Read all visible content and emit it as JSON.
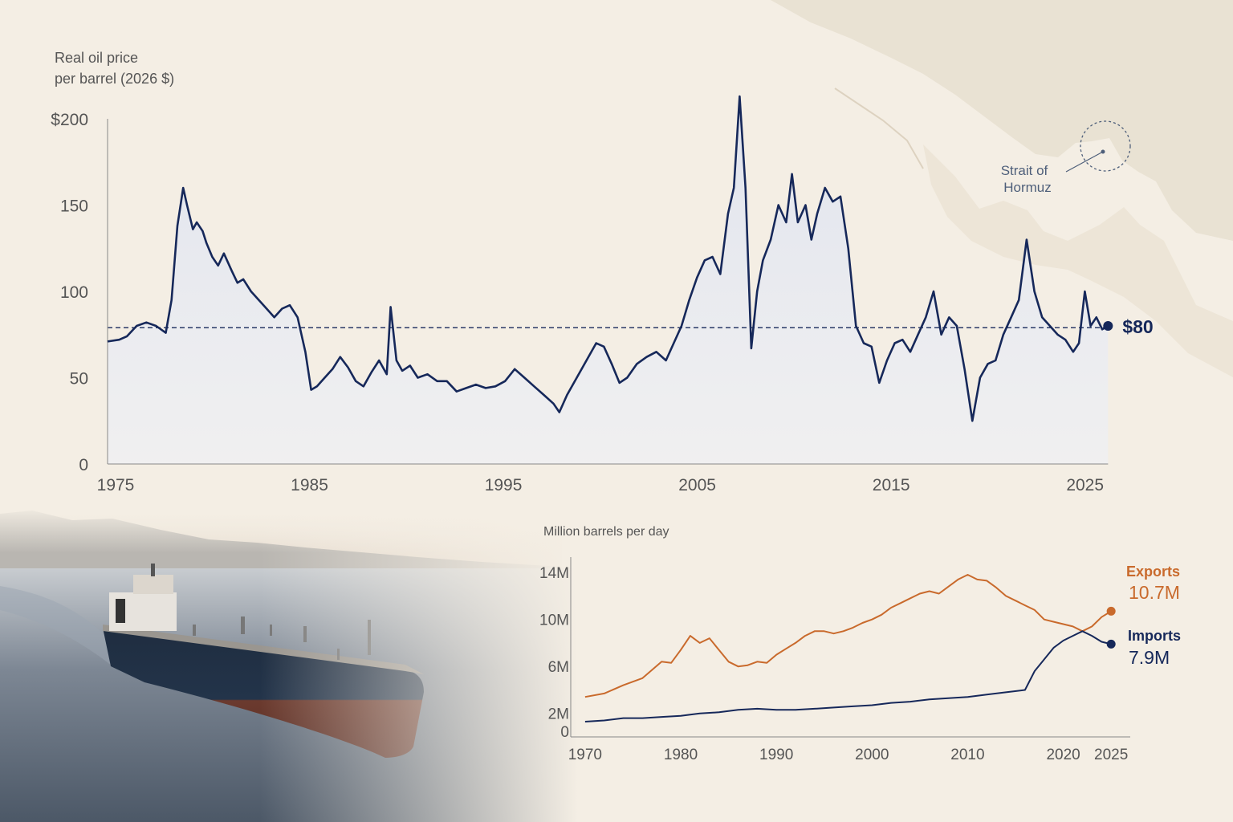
{
  "colors": {
    "background": "#f4eee4",
    "price_line": "#16285a",
    "price_fill": "#e3e6f0",
    "exports": "#c96a2c",
    "imports": "#16285a",
    "axis_text": "#555555",
    "map_land": "#e6ddcd"
  },
  "map": {
    "label_line1": "Strait of",
    "label_line2": "Hormuz"
  },
  "chart_data": [
    {
      "type": "area",
      "ylabel_line1": "Real oil price",
      "ylabel_line2": "per barrel (2026 $)",
      "x_ticks": [
        "1975",
        "1985",
        "1995",
        "2005",
        "2015",
        "2025"
      ],
      "x_tick_values": [
        1975,
        1985,
        1995,
        2005,
        2015,
        2025
      ],
      "y_ticks": [
        "$200",
        "150",
        "100",
        "50",
        "0"
      ],
      "y_tick_values": [
        200,
        150,
        100,
        50,
        0
      ],
      "xlim": [
        1975,
        2027
      ],
      "ylim": [
        0,
        200
      ],
      "reference_value": 79,
      "end_label": "$80",
      "grid": false,
      "x": [
        1975,
        1975.6,
        1976,
        1976.5,
        1977,
        1977.5,
        1978,
        1978.3,
        1978.6,
        1978.9,
        1979.1,
        1979.4,
        1979.6,
        1979.9,
        1980.1,
        1980.4,
        1980.7,
        1981,
        1981.4,
        1981.7,
        1982,
        1982.4,
        1982.8,
        1983.2,
        1983.6,
        1984,
        1984.4,
        1984.8,
        1985.2,
        1985.5,
        1985.8,
        1986.2,
        1986.6,
        1987,
        1987.4,
        1987.8,
        1988.2,
        1988.6,
        1989,
        1989.4,
        1989.6,
        1989.9,
        1990.2,
        1990.6,
        1991,
        1991.5,
        1992,
        1992.5,
        1993,
        1993.5,
        1994,
        1994.5,
        1995,
        1995.5,
        1996,
        1996.5,
        1997,
        1997.5,
        1998,
        1998.3,
        1998.7,
        1999.2,
        1999.7,
        2000.2,
        2000.6,
        2001,
        2001.4,
        2001.8,
        2002.3,
        2002.8,
        2003.3,
        2003.8,
        2004.2,
        2004.6,
        2005,
        2005.4,
        2005.8,
        2006.2,
        2006.6,
        2007,
        2007.3,
        2007.6,
        2007.9,
        2008.2,
        2008.5,
        2008.8,
        2009.2,
        2009.6,
        2010,
        2010.3,
        2010.6,
        2011,
        2011.3,
        2011.6,
        2012,
        2012.4,
        2012.8,
        2013.2,
        2013.6,
        2014,
        2014.4,
        2014.8,
        2015.2,
        2015.6,
        2016,
        2016.4,
        2016.8,
        2017.2,
        2017.6,
        2018,
        2018.4,
        2018.8,
        2019.2,
        2019.6,
        2020,
        2020.4,
        2020.8,
        2021.2,
        2021.6,
        2022,
        2022.4,
        2022.8,
        2023.2,
        2023.6,
        2024,
        2024.4,
        2024.8,
        2025.1,
        2025.4,
        2025.7,
        2026,
        2026.3,
        2026.6
      ],
      "values": [
        71,
        72,
        74,
        80,
        82,
        80,
        76,
        95,
        138,
        160,
        150,
        136,
        140,
        135,
        128,
        120,
        115,
        122,
        112,
        105,
        107,
        100,
        95,
        90,
        85,
        90,
        92,
        85,
        65,
        43,
        45,
        50,
        55,
        62,
        56,
        48,
        45,
        53,
        60,
        52,
        91,
        60,
        54,
        57,
        50,
        52,
        48,
        48,
        42,
        44,
        46,
        44,
        45,
        48,
        55,
        50,
        45,
        40,
        35,
        30,
        40,
        50,
        60,
        70,
        68,
        58,
        47,
        50,
        58,
        62,
        65,
        60,
        70,
        80,
        95,
        108,
        118,
        120,
        110,
        145,
        160,
        213,
        160,
        67,
        100,
        118,
        130,
        150,
        140,
        168,
        140,
        150,
        130,
        145,
        160,
        152,
        155,
        125,
        80,
        70,
        68,
        47,
        60,
        70,
        72,
        65,
        75,
        85,
        100,
        75,
        85,
        80,
        55,
        25,
        50,
        58,
        60,
        75,
        85,
        95,
        130,
        100,
        85,
        80,
        75,
        72,
        65,
        70,
        100,
        80,
        85,
        78,
        80
      ]
    },
    {
      "type": "line",
      "ylabel": "Million barrels per day",
      "x_ticks": [
        "1970",
        "1980",
        "1990",
        "2000",
        "2010",
        "2020",
        "2025"
      ],
      "x_tick_values": [
        1970,
        1980,
        1990,
        2000,
        2010,
        2020,
        2025
      ],
      "y_ticks": [
        "14M",
        "10M",
        "6M",
        "2M",
        "0"
      ],
      "y_tick_values": [
        14,
        10,
        6,
        2,
        0
      ],
      "xlim": [
        1968.5,
        2027
      ],
      "ylim": [
        0,
        15
      ],
      "grid": false,
      "series": [
        {
          "name": "Exports",
          "end_label": "10.7M",
          "x": [
            1970,
            1972,
            1974,
            1976,
            1978,
            1979,
            1980,
            1981,
            1982,
            1983,
            1984,
            1985,
            1986,
            1987,
            1988,
            1989,
            1990,
            1991,
            1992,
            1993,
            1994,
            1995,
            1996,
            1997,
            1998,
            1999,
            2000,
            2001,
            2002,
            2003,
            2004,
            2005,
            2006,
            2007,
            2008,
            2009,
            2010,
            2011,
            2012,
            2013,
            2014,
            2015,
            2016,
            2017,
            2018,
            2019,
            2020,
            2021,
            2022,
            2023,
            2024,
            2025
          ],
          "values": [
            3.4,
            3.7,
            4.4,
            5,
            6.4,
            6.3,
            7.4,
            8.6,
            8.0,
            8.4,
            7.4,
            6.4,
            6.0,
            6.1,
            6.4,
            6.3,
            7.0,
            7.5,
            8.0,
            8.6,
            9.0,
            9.0,
            8.8,
            9.0,
            9.3,
            9.7,
            10.0,
            10.4,
            11,
            11.4,
            11.8,
            12.2,
            12.4,
            12.2,
            12.8,
            13.4,
            13.8,
            13.4,
            13.3,
            12.7,
            12.0,
            11.6,
            11.2,
            10.8,
            10.0,
            9.8,
            9.6,
            9.4,
            9.0,
            9.4,
            10.2,
            10.7
          ]
        },
        {
          "name": "Imports",
          "end_label": "7.9M",
          "x": [
            1970,
            1972,
            1974,
            1976,
            1978,
            1980,
            1982,
            1984,
            1986,
            1988,
            1990,
            1992,
            1994,
            1996,
            1998,
            2000,
            2002,
            2004,
            2006,
            2008,
            2010,
            2012,
            2014,
            2016,
            2017,
            2018,
            2019,
            2020,
            2021,
            2022,
            2023,
            2024,
            2025
          ],
          "values": [
            1.3,
            1.4,
            1.6,
            1.6,
            1.7,
            1.8,
            2.0,
            2.1,
            2.3,
            2.4,
            2.3,
            2.3,
            2.4,
            2.5,
            2.6,
            2.7,
            2.9,
            3.0,
            3.2,
            3.3,
            3.4,
            3.6,
            3.8,
            4.0,
            5.6,
            6.6,
            7.6,
            8.2,
            8.6,
            9.0,
            8.6,
            8.1,
            7.9
          ]
        }
      ]
    }
  ]
}
